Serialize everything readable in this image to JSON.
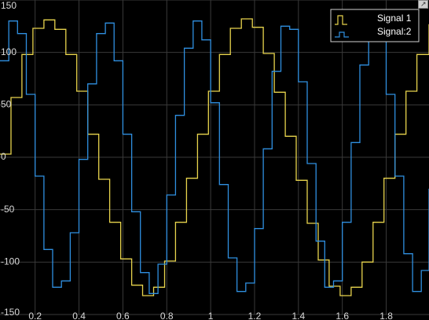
{
  "chart_data": {
    "type": "line",
    "title": "",
    "xlabel": "",
    "ylabel": "",
    "xlim": [
      0.04,
      1.995
    ],
    "ylim": [
      -150,
      150
    ],
    "grid": true,
    "legend_position": "top-right",
    "x_ticks": [
      "0.2",
      "0.4",
      "0.6",
      "0.8",
      "1",
      "1.2",
      "1.4",
      "1.6",
      "1.8"
    ],
    "y_ticks": [
      "150",
      "100",
      "50",
      "0",
      "-50",
      "-100",
      "-150"
    ],
    "colors": {
      "background": "#000000",
      "grid": "#3a3a3a",
      "tick_text": "#d9d9d9"
    },
    "series": [
      {
        "name": "Signal 1",
        "color": "#e8d44d",
        "x": [
          0.04,
          0.09,
          0.14,
          0.19,
          0.24,
          0.29,
          0.34,
          0.39,
          0.44,
          0.49,
          0.54,
          0.59,
          0.64,
          0.69,
          0.74,
          0.79,
          0.84,
          0.89,
          0.94,
          0.99,
          1.04,
          1.09,
          1.14,
          1.19,
          1.24,
          1.29,
          1.34,
          1.39,
          1.44,
          1.49,
          1.54,
          1.59,
          1.64,
          1.69,
          1.74,
          1.79,
          1.84,
          1.89,
          1.94,
          1.995
        ],
        "values": [
          3,
          57,
          98,
          123,
          131,
          122,
          98,
          63,
          22,
          -21,
          -62,
          -97,
          -122,
          -132,
          -124,
          -99,
          -62,
          -20,
          22,
          63,
          98,
          123,
          132,
          124,
          99,
          62,
          20,
          -22,
          -63,
          -98,
          -123,
          -132,
          -124,
          -100,
          -62,
          -20,
          22,
          63,
          98,
          127
        ]
      },
      {
        "name": "Signal:2",
        "color": "#2f8fe0",
        "x": [
          0.04,
          0.08,
          0.12,
          0.16,
          0.2,
          0.24,
          0.28,
          0.32,
          0.36,
          0.4,
          0.44,
          0.48,
          0.52,
          0.56,
          0.6,
          0.64,
          0.68,
          0.72,
          0.76,
          0.8,
          0.84,
          0.88,
          0.92,
          0.96,
          1.0,
          1.04,
          1.08,
          1.12,
          1.16,
          1.2,
          1.24,
          1.28,
          1.32,
          1.36,
          1.4,
          1.44,
          1.48,
          1.52,
          1.56,
          1.6,
          1.64,
          1.68,
          1.72,
          1.76,
          1.8,
          1.84,
          1.88,
          1.92,
          1.96,
          1.995
        ],
        "values": [
          92,
          130,
          118,
          60,
          -18,
          -88,
          -124,
          -118,
          -72,
          -2,
          70,
          118,
          128,
          92,
          22,
          -52,
          -110,
          -130,
          -102,
          -36,
          40,
          104,
          130,
          112,
          52,
          -26,
          -96,
          -128,
          -120,
          -68,
          8,
          82,
          125,
          122,
          72,
          -6,
          -80,
          -124,
          -118,
          -62,
          14,
          88,
          127,
          116,
          60,
          -18,
          -92,
          -128,
          -108,
          -30
        ]
      }
    ]
  },
  "legend": {
    "toggle_icon": "legend-toggle-icon"
  }
}
